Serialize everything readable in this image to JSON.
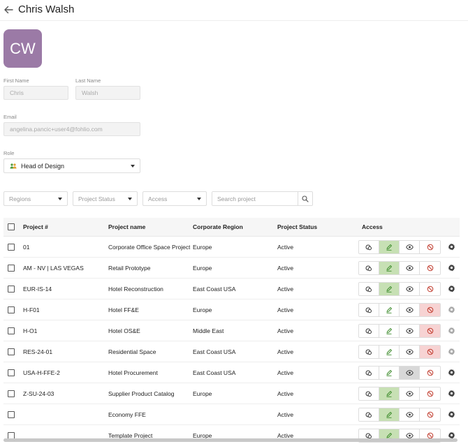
{
  "header": {
    "title": "Chris Walsh"
  },
  "avatar": {
    "initials": "CW",
    "color": "#9b7aa6"
  },
  "form": {
    "first_name_label": "First Name",
    "first_name_value": "Chris",
    "last_name_label": "Last Name",
    "last_name_value": "Walsh",
    "email_label": "Email",
    "email_value": "angelina.pancic+user4@fohlio.com",
    "role_label": "Role",
    "role_value": "Head of Design"
  },
  "filters": {
    "regions": "Regions",
    "project_status": "Project Status",
    "access": "Access",
    "search_placeholder": "Search project"
  },
  "table": {
    "columns": [
      "Project #",
      "Project name",
      "Corporate Region",
      "Project Status",
      "Access"
    ],
    "rows": [
      {
        "number": "01",
        "name": "Corporate Office Space Project",
        "region": "Europe",
        "status": "Active",
        "access": "edit"
      },
      {
        "number": "AM - NV | LAS VEGAS",
        "name": "Retail Prototype",
        "region": "Europe",
        "status": "Active",
        "access": "edit"
      },
      {
        "number": "EUR-IS-14",
        "name": "Hotel Reconstruction",
        "region": "East Coast USA",
        "status": "Active",
        "access": "edit"
      },
      {
        "number": "H-F01",
        "name": "Hotel FF&E",
        "region": "Europe",
        "status": "Active",
        "access": "none"
      },
      {
        "number": "H-O1",
        "name": "Hotel OS&E",
        "region": "Middle East",
        "status": "Active",
        "access": "none"
      },
      {
        "number": "RES-24-01",
        "name": "Residential Space",
        "region": "East Coast USA",
        "status": "Active",
        "access": "none"
      },
      {
        "number": "USA-H-FFE-2",
        "name": "Hotel Procurement",
        "region": "East Coast USA",
        "status": "Active",
        "access": "view"
      },
      {
        "number": "Z-SU-24-03",
        "name": "Supplier Product Catalog",
        "region": "Europe",
        "status": "Active",
        "access": "edit"
      },
      {
        "number": "",
        "name": "Economy FFE",
        "region": "",
        "status": "Active",
        "access": "edit"
      },
      {
        "number": "",
        "name": "Template Project",
        "region": "Europe",
        "status": "Active",
        "access": "edit"
      }
    ]
  },
  "colors": {
    "edit_active": "#c7e0b4",
    "view_active": "#d8d8d8",
    "none_active": "#f7d3d3",
    "edit_icon": "#3b8a2a",
    "none_icon": "#c0392b"
  },
  "icons": [
    "back-arrow-icon",
    "people-icon",
    "chevron-down-icon",
    "search-icon",
    "copy-icon",
    "pencil-icon",
    "eye-icon",
    "block-icon",
    "gear-icon"
  ]
}
